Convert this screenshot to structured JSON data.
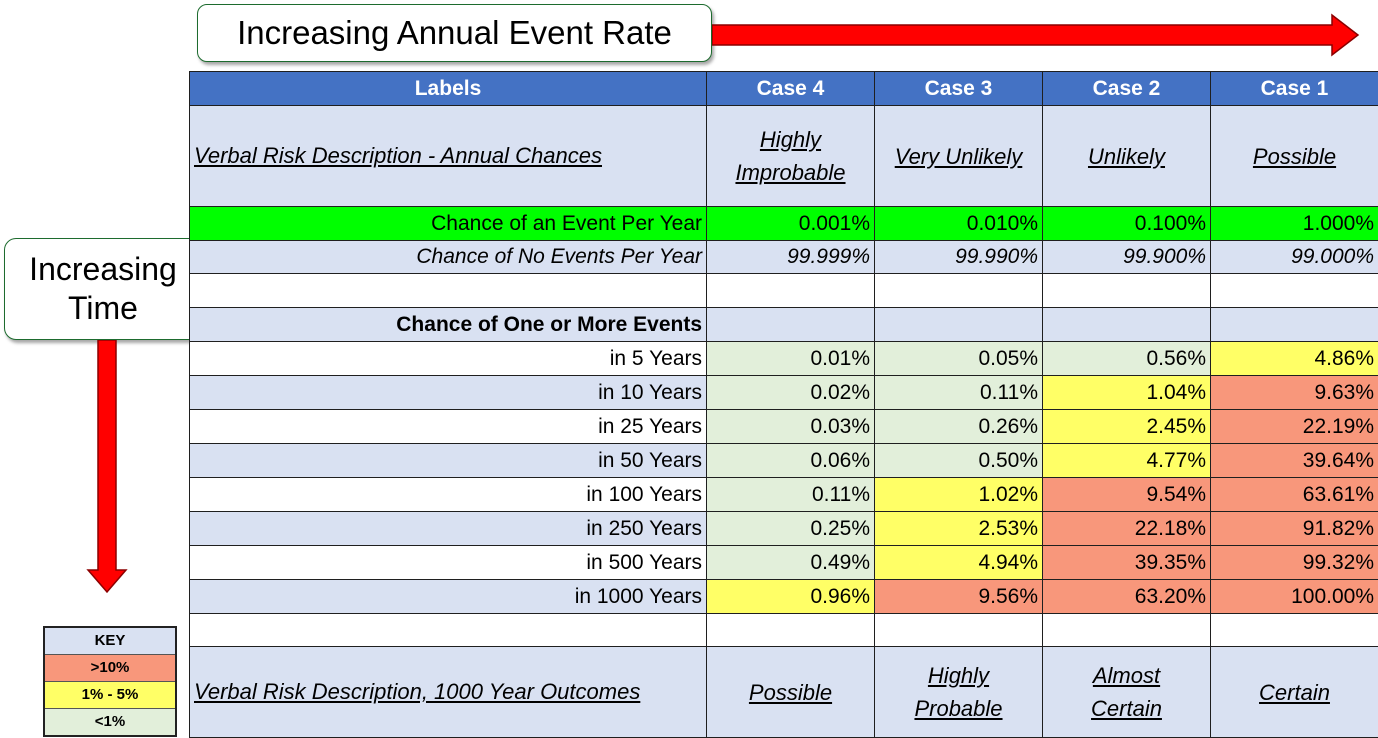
{
  "callouts": {
    "top": "Increasing Annual Event Rate",
    "left_line1": "Increasing",
    "left_line2": "Time"
  },
  "key": {
    "title": "KEY",
    "items": [
      {
        "label": ">10%",
        "color": "#f8977b"
      },
      {
        "label": "1% - 5%",
        "color": "#ffff66"
      },
      {
        "label": "<1%",
        "color": "#e2efda"
      }
    ]
  },
  "colors": {
    "header": "#4472c4",
    "arrow": "#ff0000",
    "event_row": "#00ff00"
  },
  "table": {
    "headers": [
      "Labels",
      "Case 4",
      "Case 3",
      "Case 2",
      "Case 1"
    ],
    "verbal_annual": {
      "label": "Verbal Risk Description  - Annual  Chances",
      "values": [
        [
          "Highly",
          "Improbable"
        ],
        [
          "Very Unlikely"
        ],
        [
          "Unlikely"
        ],
        [
          "Possible"
        ]
      ]
    },
    "event_per_year": {
      "label": "Chance of an Event Per Year",
      "values": [
        "0.001%",
        "0.010%",
        "0.100%",
        "1.000%"
      ]
    },
    "no_events_per_year": {
      "label": "Chance of No Events Per Year",
      "values": [
        "99.999%",
        "99.990%",
        "99.900%",
        "99.000%"
      ]
    },
    "section_title": "Chance of One or More Events",
    "rows": [
      {
        "label": "in 5 Years",
        "values": [
          "0.01%",
          "0.05%",
          "0.56%",
          "4.86%"
        ],
        "levels": [
          "low",
          "low",
          "low",
          "mid"
        ]
      },
      {
        "label": "in 10 Years",
        "values": [
          "0.02%",
          "0.11%",
          "1.04%",
          "9.63%"
        ],
        "levels": [
          "low",
          "low",
          "mid",
          "high"
        ]
      },
      {
        "label": "in 25 Years",
        "values": [
          "0.03%",
          "0.26%",
          "2.45%",
          "22.19%"
        ],
        "levels": [
          "low",
          "low",
          "mid",
          "high"
        ]
      },
      {
        "label": "in 50 Years",
        "values": [
          "0.06%",
          "0.50%",
          "4.77%",
          "39.64%"
        ],
        "levels": [
          "low",
          "low",
          "mid",
          "high"
        ]
      },
      {
        "label": "in 100 Years",
        "values": [
          "0.11%",
          "1.02%",
          "9.54%",
          "63.61%"
        ],
        "levels": [
          "low",
          "mid",
          "high",
          "high"
        ]
      },
      {
        "label": "in 250 Years",
        "values": [
          "0.25%",
          "2.53%",
          "22.18%",
          "91.82%"
        ],
        "levels": [
          "low",
          "mid",
          "high",
          "high"
        ]
      },
      {
        "label": "in 500 Years",
        "values": [
          "0.49%",
          "4.94%",
          "39.35%",
          "99.32%"
        ],
        "levels": [
          "low",
          "mid",
          "high",
          "high"
        ]
      },
      {
        "label": "in 1000 Years",
        "values": [
          "0.96%",
          "9.56%",
          "63.20%",
          "100.00%"
        ],
        "levels": [
          "mid",
          "high",
          "high",
          "high"
        ]
      }
    ],
    "verbal_1000": {
      "label": "Verbal Risk Description, 1000 Year Outcomes",
      "values": [
        [
          "Possible"
        ],
        [
          "Highly",
          "Probable"
        ],
        [
          "Almost",
          "Certain"
        ],
        [
          "Certain"
        ]
      ]
    }
  }
}
